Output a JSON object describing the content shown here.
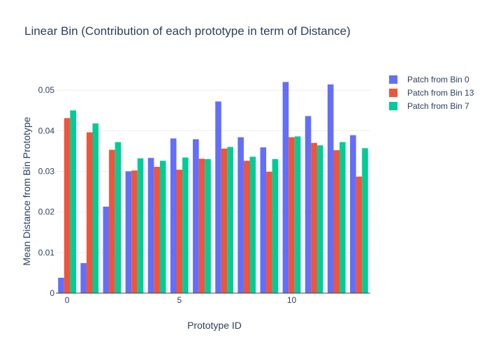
{
  "chart_data": {
    "type": "bar",
    "title": "Linear Bin (Contribution of each prototype in term of Distance)",
    "xlabel": "Prototype ID",
    "ylabel": "Mean Distance from Bin Prototype",
    "ylim": [
      0,
      0.055
    ],
    "xlim": [
      -0.5,
      13.5
    ],
    "yticks": [
      0,
      0.01,
      0.02,
      0.03,
      0.04,
      0.05
    ],
    "ytick_labels": [
      "0",
      "0.01",
      "0.02",
      "0.03",
      "0.04",
      "0.05"
    ],
    "xticks": [
      0,
      5,
      10
    ],
    "xtick_labels": [
      "0",
      "5",
      "10"
    ],
    "legend_position": "top-right",
    "categories": [
      0,
      1,
      2,
      3,
      4,
      5,
      6,
      7,
      8,
      9,
      10,
      11,
      12,
      13
    ],
    "series": [
      {
        "name": "Patch from Bin 0",
        "color": "#636efa",
        "values": [
          0.0038,
          0.0074,
          0.0213,
          0.03,
          0.0333,
          0.0381,
          0.0379,
          0.0472,
          0.0384,
          0.0359,
          0.052,
          0.0436,
          0.0514,
          0.0389
        ]
      },
      {
        "name": "Patch from Bin 13",
        "color": "#ef553b",
        "values": [
          0.0431,
          0.0396,
          0.0353,
          0.0302,
          0.0311,
          0.0304,
          0.0331,
          0.0356,
          0.0326,
          0.0299,
          0.0384,
          0.037,
          0.0352,
          0.0287
        ]
      },
      {
        "name": "Patch from Bin 7",
        "color": "#00cc96",
        "values": [
          0.045,
          0.0418,
          0.0372,
          0.0332,
          0.0326,
          0.0334,
          0.033,
          0.036,
          0.0336,
          0.033,
          0.0386,
          0.0364,
          0.0372,
          0.0357
        ]
      }
    ]
  }
}
